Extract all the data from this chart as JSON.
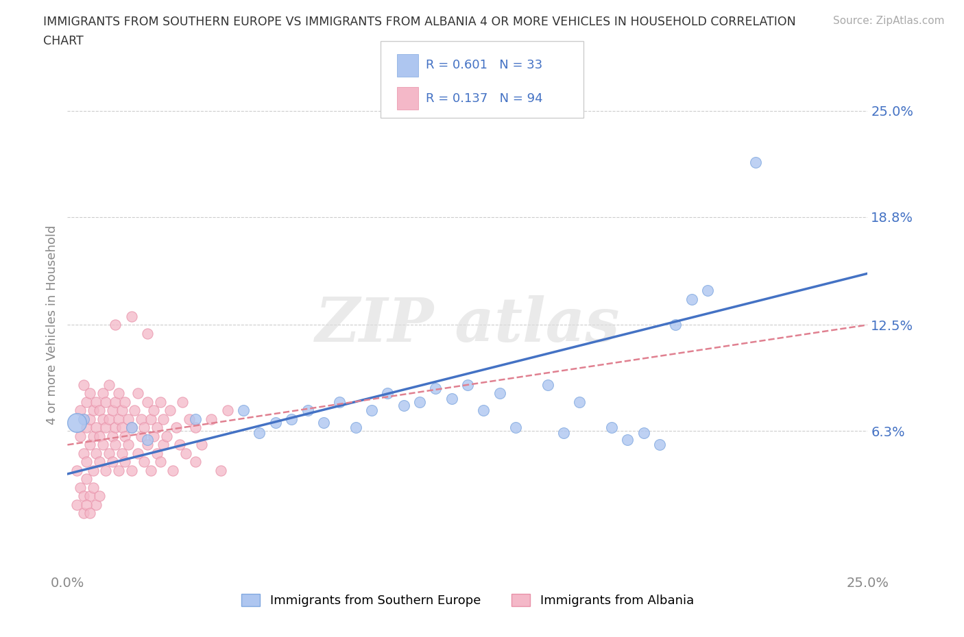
{
  "title_line1": "IMMIGRANTS FROM SOUTHERN EUROPE VS IMMIGRANTS FROM ALBANIA 4 OR MORE VEHICLES IN HOUSEHOLD CORRELATION",
  "title_line2": "CHART",
  "source": "Source: ZipAtlas.com",
  "ylabel": "4 or more Vehicles in Household",
  "xlim": [
    0.0,
    0.25
  ],
  "ylim": [
    -0.02,
    0.27
  ],
  "ytick_labels": [
    "6.3%",
    "12.5%",
    "18.8%",
    "25.0%"
  ],
  "ytick_values": [
    0.063,
    0.125,
    0.188,
    0.25
  ],
  "xtick_labels": [
    "0.0%",
    "25.0%"
  ],
  "xtick_values": [
    0.0,
    0.25
  ],
  "blue_line_color": "#4472c4",
  "pink_line_color": "#e8a0b0",
  "blue_scatter_color": "#aec6f0",
  "pink_scatter_color": "#f4b8c8",
  "background_color": "#ffffff",
  "blue_scatter": [
    [
      0.005,
      0.07
    ],
    [
      0.02,
      0.065
    ],
    [
      0.025,
      0.058
    ],
    [
      0.04,
      0.07
    ],
    [
      0.055,
      0.075
    ],
    [
      0.06,
      0.062
    ],
    [
      0.065,
      0.068
    ],
    [
      0.07,
      0.07
    ],
    [
      0.075,
      0.075
    ],
    [
      0.08,
      0.068
    ],
    [
      0.085,
      0.08
    ],
    [
      0.09,
      0.065
    ],
    [
      0.095,
      0.075
    ],
    [
      0.1,
      0.085
    ],
    [
      0.105,
      0.078
    ],
    [
      0.11,
      0.08
    ],
    [
      0.115,
      0.088
    ],
    [
      0.12,
      0.082
    ],
    [
      0.125,
      0.09
    ],
    [
      0.13,
      0.075
    ],
    [
      0.135,
      0.085
    ],
    [
      0.14,
      0.065
    ],
    [
      0.15,
      0.09
    ],
    [
      0.155,
      0.062
    ],
    [
      0.16,
      0.08
    ],
    [
      0.17,
      0.065
    ],
    [
      0.175,
      0.058
    ],
    [
      0.18,
      0.062
    ],
    [
      0.185,
      0.055
    ],
    [
      0.19,
      0.125
    ],
    [
      0.195,
      0.14
    ],
    [
      0.2,
      0.145
    ],
    [
      0.215,
      0.22
    ]
  ],
  "pink_scatter": [
    [
      0.003,
      0.04
    ],
    [
      0.004,
      0.06
    ],
    [
      0.004,
      0.075
    ],
    [
      0.005,
      0.05
    ],
    [
      0.005,
      0.07
    ],
    [
      0.005,
      0.09
    ],
    [
      0.006,
      0.045
    ],
    [
      0.006,
      0.065
    ],
    [
      0.006,
      0.08
    ],
    [
      0.007,
      0.055
    ],
    [
      0.007,
      0.07
    ],
    [
      0.007,
      0.085
    ],
    [
      0.008,
      0.04
    ],
    [
      0.008,
      0.06
    ],
    [
      0.008,
      0.075
    ],
    [
      0.009,
      0.05
    ],
    [
      0.009,
      0.065
    ],
    [
      0.009,
      0.08
    ],
    [
      0.01,
      0.045
    ],
    [
      0.01,
      0.06
    ],
    [
      0.01,
      0.075
    ],
    [
      0.011,
      0.055
    ],
    [
      0.011,
      0.07
    ],
    [
      0.011,
      0.085
    ],
    [
      0.012,
      0.04
    ],
    [
      0.012,
      0.065
    ],
    [
      0.012,
      0.08
    ],
    [
      0.013,
      0.05
    ],
    [
      0.013,
      0.07
    ],
    [
      0.013,
      0.09
    ],
    [
      0.014,
      0.045
    ],
    [
      0.014,
      0.06
    ],
    [
      0.014,
      0.075
    ],
    [
      0.015,
      0.055
    ],
    [
      0.015,
      0.065
    ],
    [
      0.015,
      0.08
    ],
    [
      0.016,
      0.04
    ],
    [
      0.016,
      0.07
    ],
    [
      0.016,
      0.085
    ],
    [
      0.017,
      0.05
    ],
    [
      0.017,
      0.065
    ],
    [
      0.017,
      0.075
    ],
    [
      0.018,
      0.045
    ],
    [
      0.018,
      0.06
    ],
    [
      0.018,
      0.08
    ],
    [
      0.019,
      0.055
    ],
    [
      0.019,
      0.07
    ],
    [
      0.02,
      0.04
    ],
    [
      0.02,
      0.065
    ],
    [
      0.021,
      0.075
    ],
    [
      0.022,
      0.05
    ],
    [
      0.022,
      0.085
    ],
    [
      0.023,
      0.06
    ],
    [
      0.023,
      0.07
    ],
    [
      0.024,
      0.045
    ],
    [
      0.024,
      0.065
    ],
    [
      0.025,
      0.055
    ],
    [
      0.025,
      0.08
    ],
    [
      0.026,
      0.04
    ],
    [
      0.026,
      0.07
    ],
    [
      0.027,
      0.06
    ],
    [
      0.027,
      0.075
    ],
    [
      0.028,
      0.05
    ],
    [
      0.028,
      0.065
    ],
    [
      0.029,
      0.045
    ],
    [
      0.029,
      0.08
    ],
    [
      0.03,
      0.055
    ],
    [
      0.03,
      0.07
    ],
    [
      0.031,
      0.06
    ],
    [
      0.032,
      0.075
    ],
    [
      0.033,
      0.04
    ],
    [
      0.034,
      0.065
    ],
    [
      0.035,
      0.055
    ],
    [
      0.036,
      0.08
    ],
    [
      0.037,
      0.05
    ],
    [
      0.038,
      0.07
    ],
    [
      0.04,
      0.045
    ],
    [
      0.04,
      0.065
    ],
    [
      0.042,
      0.055
    ],
    [
      0.045,
      0.07
    ],
    [
      0.048,
      0.04
    ],
    [
      0.05,
      0.075
    ],
    [
      0.003,
      0.02
    ],
    [
      0.004,
      0.03
    ],
    [
      0.005,
      0.025
    ],
    [
      0.006,
      0.035
    ],
    [
      0.007,
      0.025
    ],
    [
      0.008,
      0.03
    ],
    [
      0.009,
      0.02
    ],
    [
      0.01,
      0.025
    ],
    [
      0.015,
      0.125
    ],
    [
      0.02,
      0.13
    ],
    [
      0.025,
      0.12
    ],
    [
      0.005,
      0.015
    ],
    [
      0.006,
      0.02
    ],
    [
      0.007,
      0.015
    ]
  ],
  "big_blue_dot": [
    0.003,
    0.068
  ]
}
